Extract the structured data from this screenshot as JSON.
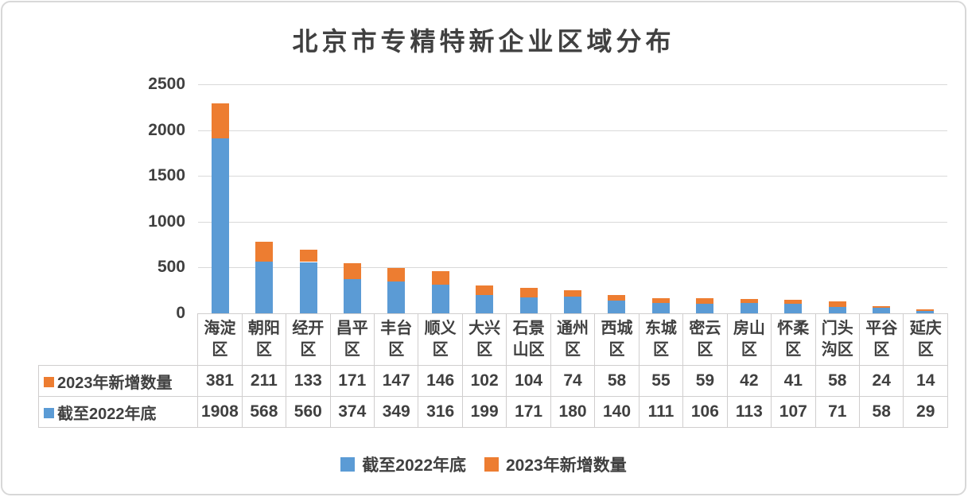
{
  "style": {
    "blue": "#5B9BD5",
    "orange": "#ED7D31",
    "text_color": "#404040",
    "grid_color": "#D9D9D9",
    "table_border_color": "#D0CECE"
  },
  "chart_data": {
    "type": "bar",
    "stacked": true,
    "title": "北京市专精特新企业区域分布",
    "xlabel": "",
    "ylabel": "",
    "categories": [
      "海淀区",
      "朝阳区",
      "经开区",
      "昌平区",
      "丰台区",
      "顺义区",
      "大兴区",
      "石景山区",
      "通州区",
      "西城区",
      "东城区",
      "密云区",
      "房山区",
      "怀柔区",
      "门头沟区",
      "平谷区",
      "延庆区"
    ],
    "series": [
      {
        "name": "截至2022年底",
        "color": "#5B9BD5",
        "values": [
          1908,
          568,
          560,
          374,
          349,
          316,
          199,
          171,
          180,
          140,
          111,
          106,
          113,
          107,
          71,
          58,
          29
        ]
      },
      {
        "name": "2023年新增数量",
        "color": "#ED7D31",
        "values": [
          381,
          211,
          133,
          171,
          147,
          146,
          102,
          104,
          74,
          58,
          55,
          59,
          42,
          41,
          58,
          24,
          14
        ]
      }
    ],
    "ylim": [
      0,
      2500
    ],
    "yticks": [
      0,
      500,
      1000,
      1500,
      2000,
      2500
    ],
    "grid": true,
    "legend_position": "bottom",
    "data_table": {
      "show": true,
      "row_order": [
        "2023年新增数量",
        "截至2022年底"
      ]
    }
  },
  "legend": {
    "items": [
      {
        "label": "截至2022年底",
        "color": "#5B9BD5"
      },
      {
        "label": "2023年新增数量",
        "color": "#ED7D31"
      }
    ]
  }
}
